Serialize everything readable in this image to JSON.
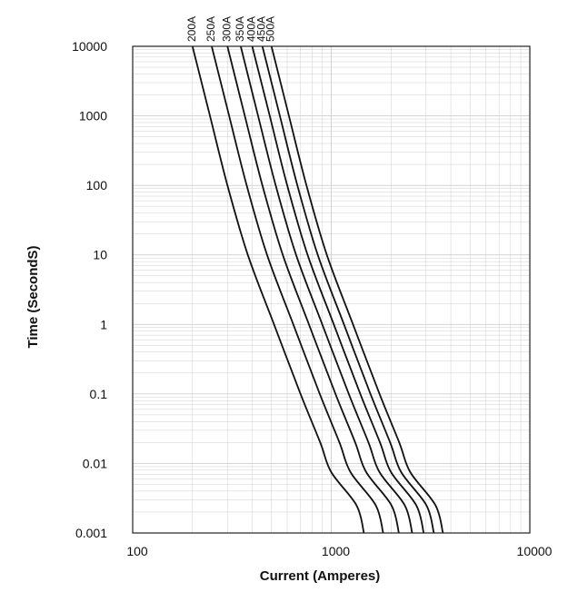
{
  "chart_data": {
    "type": "line",
    "title": "",
    "xlabel": "Current  (Amperes)",
    "ylabel": "Time (SecondS)",
    "x_scale": "log",
    "y_scale": "log",
    "xlim": [
      100,
      10000
    ],
    "ylim": [
      0.001,
      10000
    ],
    "grid": true,
    "x_ticks": [
      {
        "value": 100,
        "label": "100"
      },
      {
        "value": 1000,
        "label": "1000"
      },
      {
        "value": 10000,
        "label": "10000"
      }
    ],
    "y_ticks": [
      {
        "value": 10000,
        "label": "10000"
      },
      {
        "value": 1000,
        "label": "1000"
      },
      {
        "value": 100,
        "label": "100"
      },
      {
        "value": 10,
        "label": "10"
      },
      {
        "value": 1,
        "label": "1"
      },
      {
        "value": 0.1,
        "label": "0.1"
      },
      {
        "value": 0.01,
        "label": "0.01"
      },
      {
        "value": 0.001,
        "label": "0.001"
      }
    ],
    "line_color": "#111111",
    "grid_color": "#cfcfcf",
    "series": [
      {
        "name": "200A",
        "points": [
          [
            200,
            10000
          ],
          [
            245,
            1000
          ],
          [
            300,
            100
          ],
          [
            380,
            10
          ],
          [
            515,
            1
          ],
          [
            700,
            0.1
          ],
          [
            880,
            0.02
          ],
          [
            1000,
            0.0075
          ],
          [
            1340,
            0.0025
          ],
          [
            1460,
            0.001
          ]
        ]
      },
      {
        "name": "250A",
        "points": [
          [
            250,
            10000
          ],
          [
            306,
            1000
          ],
          [
            375,
            100
          ],
          [
            475,
            10
          ],
          [
            644,
            1
          ],
          [
            875,
            0.1
          ],
          [
            1100,
            0.02
          ],
          [
            1250,
            0.0075
          ],
          [
            1675,
            0.0025
          ],
          [
            1825,
            0.001
          ]
        ]
      },
      {
        "name": "300A",
        "points": [
          [
            300,
            10000
          ],
          [
            367,
            1000
          ],
          [
            450,
            100
          ],
          [
            570,
            10
          ],
          [
            772,
            1
          ],
          [
            1050,
            0.1
          ],
          [
            1320,
            0.02
          ],
          [
            1500,
            0.0075
          ],
          [
            2010,
            0.0025
          ],
          [
            2190,
            0.001
          ]
        ]
      },
      {
        "name": "350A",
        "points": [
          [
            350,
            10000
          ],
          [
            428,
            1000
          ],
          [
            525,
            100
          ],
          [
            665,
            10
          ],
          [
            901,
            1
          ],
          [
            1225,
            0.1
          ],
          [
            1540,
            0.02
          ],
          [
            1750,
            0.0075
          ],
          [
            2345,
            0.0025
          ],
          [
            2555,
            0.001
          ]
        ]
      },
      {
        "name": "400A",
        "points": [
          [
            400,
            10000
          ],
          [
            490,
            1000
          ],
          [
            600,
            100
          ],
          [
            760,
            10
          ],
          [
            1030,
            1
          ],
          [
            1400,
            0.1
          ],
          [
            1760,
            0.02
          ],
          [
            2000,
            0.0075
          ],
          [
            2680,
            0.0025
          ],
          [
            2920,
            0.001
          ]
        ]
      },
      {
        "name": "450A",
        "points": [
          [
            450,
            10000
          ],
          [
            551,
            1000
          ],
          [
            675,
            100
          ],
          [
            855,
            10
          ],
          [
            1159,
            1
          ],
          [
            1575,
            0.1
          ],
          [
            1980,
            0.02
          ],
          [
            2250,
            0.0075
          ],
          [
            3015,
            0.0025
          ],
          [
            3285,
            0.001
          ]
        ]
      },
      {
        "name": "500A",
        "points": [
          [
            500,
            10000
          ],
          [
            612,
            1000
          ],
          [
            750,
            100
          ],
          [
            950,
            10
          ],
          [
            1287,
            1
          ],
          [
            1750,
            0.1
          ],
          [
            2200,
            0.02
          ],
          [
            2500,
            0.0075
          ],
          [
            3350,
            0.0025
          ],
          [
            3650,
            0.001
          ]
        ]
      }
    ]
  }
}
